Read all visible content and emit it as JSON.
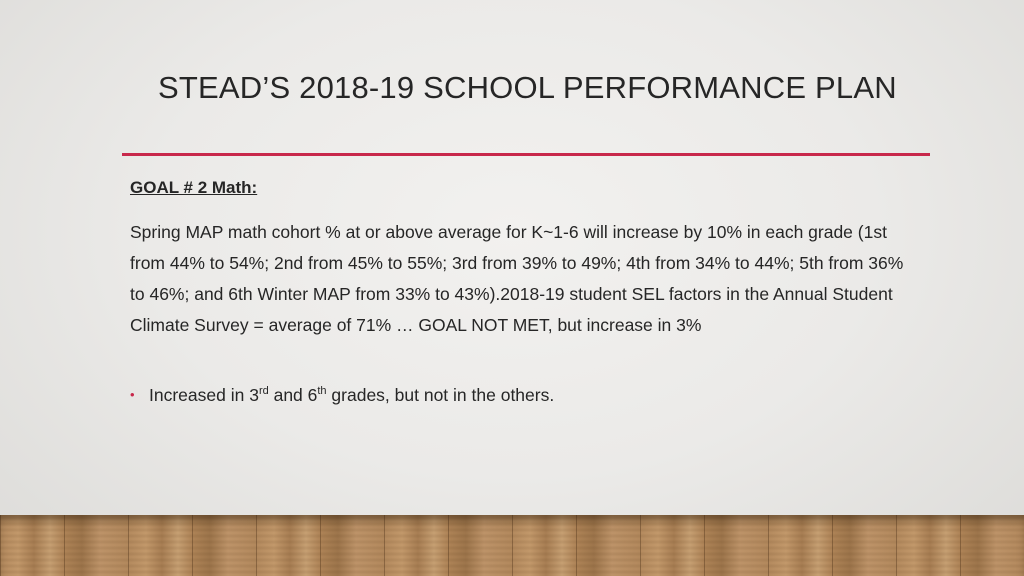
{
  "slide": {
    "title": "STEAD’S 2018-19 SCHOOL PERFORMANCE PLAN",
    "goal_heading": "GOAL # 2 Math:",
    "paragraph": "Spring MAP math cohort % at or above average for K~1-6 will increase by 10% in each grade (1st from 44% to 54%; 2nd from 45% to 55%; 3rd from 39% to 49%; 4th from 34% to 44%; 5th from 36% to 46%; and 6th Winter MAP from 33% to 43%).2018-19 student SEL factors in the Annual Student Climate Survey = average of 71% … GOAL NOT MET, but increase in 3%",
    "bullet": {
      "marker": "•",
      "part1": "Increased in 3",
      "sup1": "rd",
      "part2": " and 6",
      "sup2": "th",
      "part3": " grades, but not in the others."
    }
  },
  "colors": {
    "accent": "#c8284b",
    "text": "#262626"
  }
}
